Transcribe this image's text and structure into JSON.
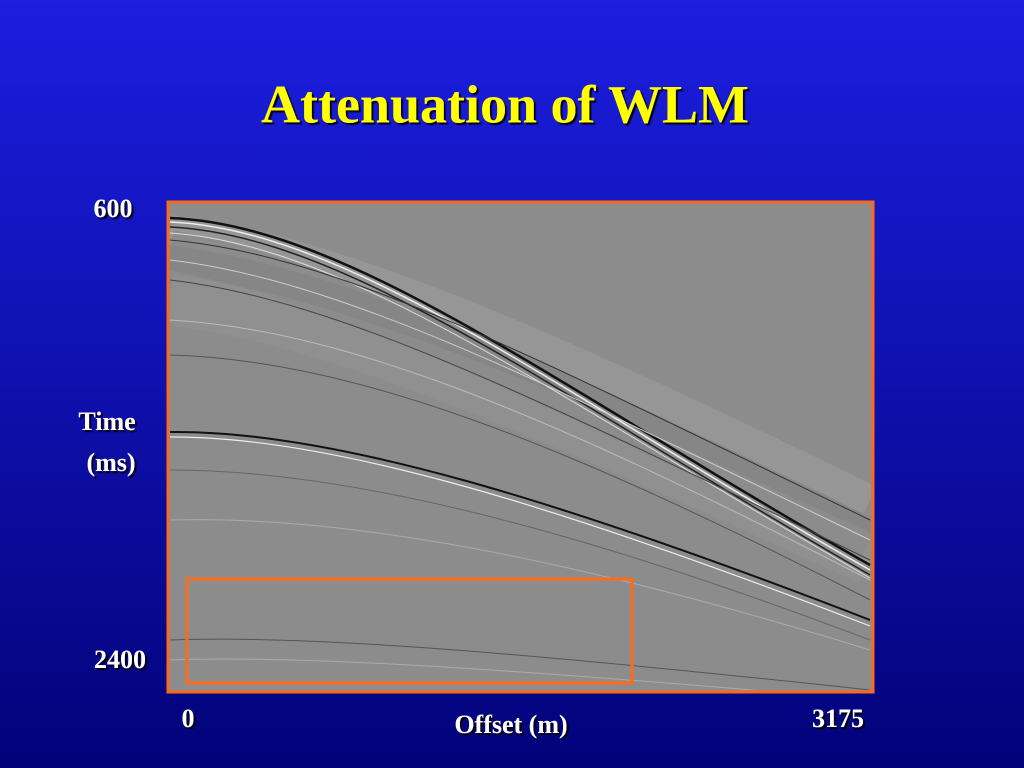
{
  "slide": {
    "title": "Attenuation of WLM",
    "y_axis": {
      "top_label": "600",
      "bottom_label": "2400",
      "title_lines": [
        "Time",
        "(ms)"
      ]
    },
    "x_axis": {
      "left_label": "0",
      "right_label": "3175",
      "title": "Offset (m)"
    }
  }
}
